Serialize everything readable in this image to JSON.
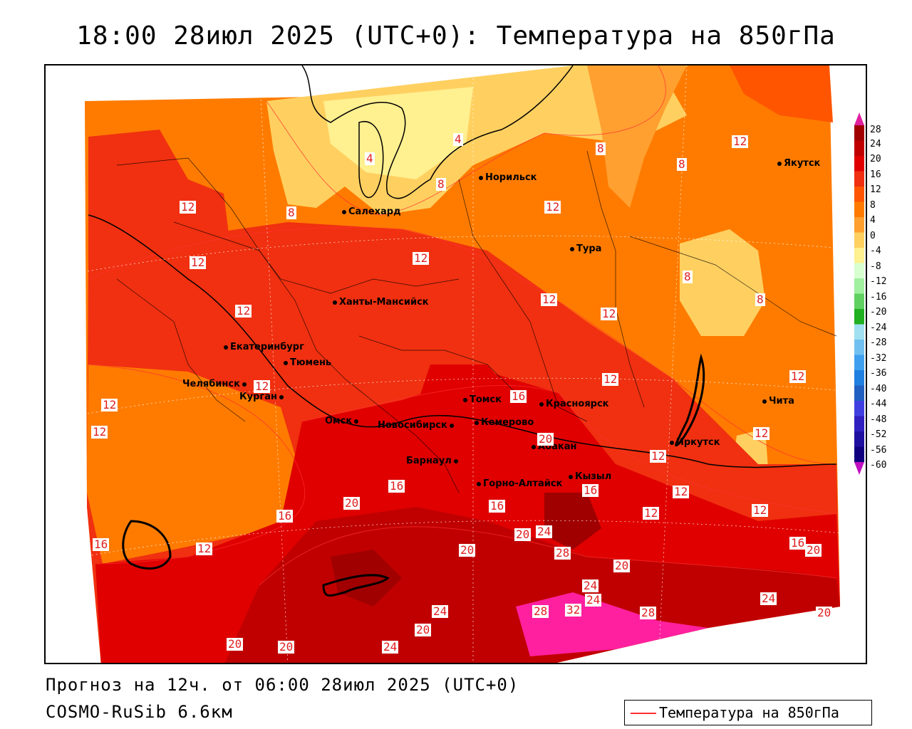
{
  "title": "18:00 28июл 2025 (UTC+0): Температура на 850гПа",
  "footer": {
    "forecast": "Прогноз на 12ч. от 06:00 28июл 2025 (UTC+0)",
    "model": "COSMO-RuSib 6.6км"
  },
  "legend": {
    "label": "Температура на 850гПа",
    "line_color": "#ff3030"
  },
  "colorbar": {
    "ticks": [
      "28",
      "24",
      "20",
      "16",
      "12",
      "8",
      "4",
      "0",
      "-4",
      "-8",
      "-12",
      "-16",
      "-20",
      "-24",
      "-28",
      "-32",
      "-36",
      "-40",
      "-44",
      "-48",
      "-52",
      "-56",
      "-60"
    ],
    "colors": [
      "#a00000",
      "#c00000",
      "#e00000",
      "#f03010",
      "#ff5500",
      "#ff7b00",
      "#ffa030",
      "#ffd060",
      "#fff090",
      "#d8ffd0",
      "#a0f0a0",
      "#60d060",
      "#20b020",
      "#a0e0f0",
      "#70c0f0",
      "#40a0f0",
      "#2080e0",
      "#2060c0",
      "#4040e0",
      "#3020c0",
      "#2010a0",
      "#100080"
    ],
    "top_arrow_color": "#e020a0",
    "bottom_arrow_color": "#c010c0"
  },
  "cities": [
    {
      "name": "Норильск"
    },
    {
      "name": "Якутск"
    },
    {
      "name": "Салехард"
    },
    {
      "name": "Тура"
    },
    {
      "name": "Ханты-Мансийск"
    },
    {
      "name": "Екатеринбург"
    },
    {
      "name": "Тюмень"
    },
    {
      "name": "Челябинск"
    },
    {
      "name": "Курган"
    },
    {
      "name": "Томск"
    },
    {
      "name": "Красноярск"
    },
    {
      "name": "Омск"
    },
    {
      "name": "Новосибирск"
    },
    {
      "name": "Кемерово"
    },
    {
      "name": "Абакан"
    },
    {
      "name": "Иркутск"
    },
    {
      "name": "Барнаул"
    },
    {
      "name": "Кызыл"
    },
    {
      "name": "Горно-Алтайск"
    },
    {
      "name": "Чита"
    }
  ],
  "contour_labels": [
    "12",
    "8",
    "4",
    "8",
    "8",
    "12",
    "12",
    "8",
    "12",
    "12",
    "12",
    "12",
    "12",
    "8",
    "8",
    "12",
    "12",
    "12",
    "16",
    "12",
    "12",
    "12",
    "12",
    "20",
    "16",
    "16",
    "12",
    "12",
    "12",
    "16",
    "20",
    "16",
    "20",
    "24",
    "28",
    "20",
    "16",
    "12",
    "20",
    "24",
    "24",
    "28",
    "32",
    "24",
    "28",
    "24",
    "20",
    "20",
    "24",
    "20",
    "20",
    "16",
    "20",
    "4"
  ]
}
